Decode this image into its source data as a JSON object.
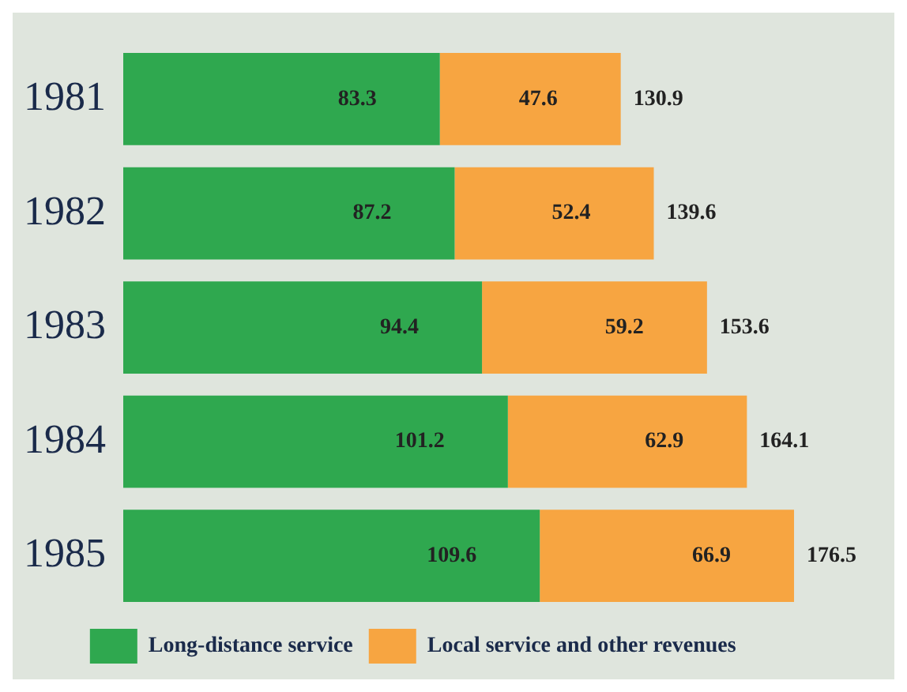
{
  "chart_data": {
    "type": "bar",
    "orientation": "horizontal",
    "stacked": true,
    "categories": [
      "1981",
      "1982",
      "1983",
      "1984",
      "1985"
    ],
    "series": [
      {
        "name": "Long-distance service",
        "color": "#2fa84f",
        "values": [
          83.3,
          87.2,
          94.4,
          101.2,
          109.6
        ]
      },
      {
        "name": "Local service and other revenues",
        "color": "#f7a541",
        "values": [
          47.6,
          52.4,
          59.2,
          62.9,
          66.9
        ]
      }
    ],
    "data_labels": true,
    "totals": [
      "130.9",
      "139.6",
      "153.6",
      "164.1",
      "176.5"
    ],
    "legend": "bottom"
  }
}
